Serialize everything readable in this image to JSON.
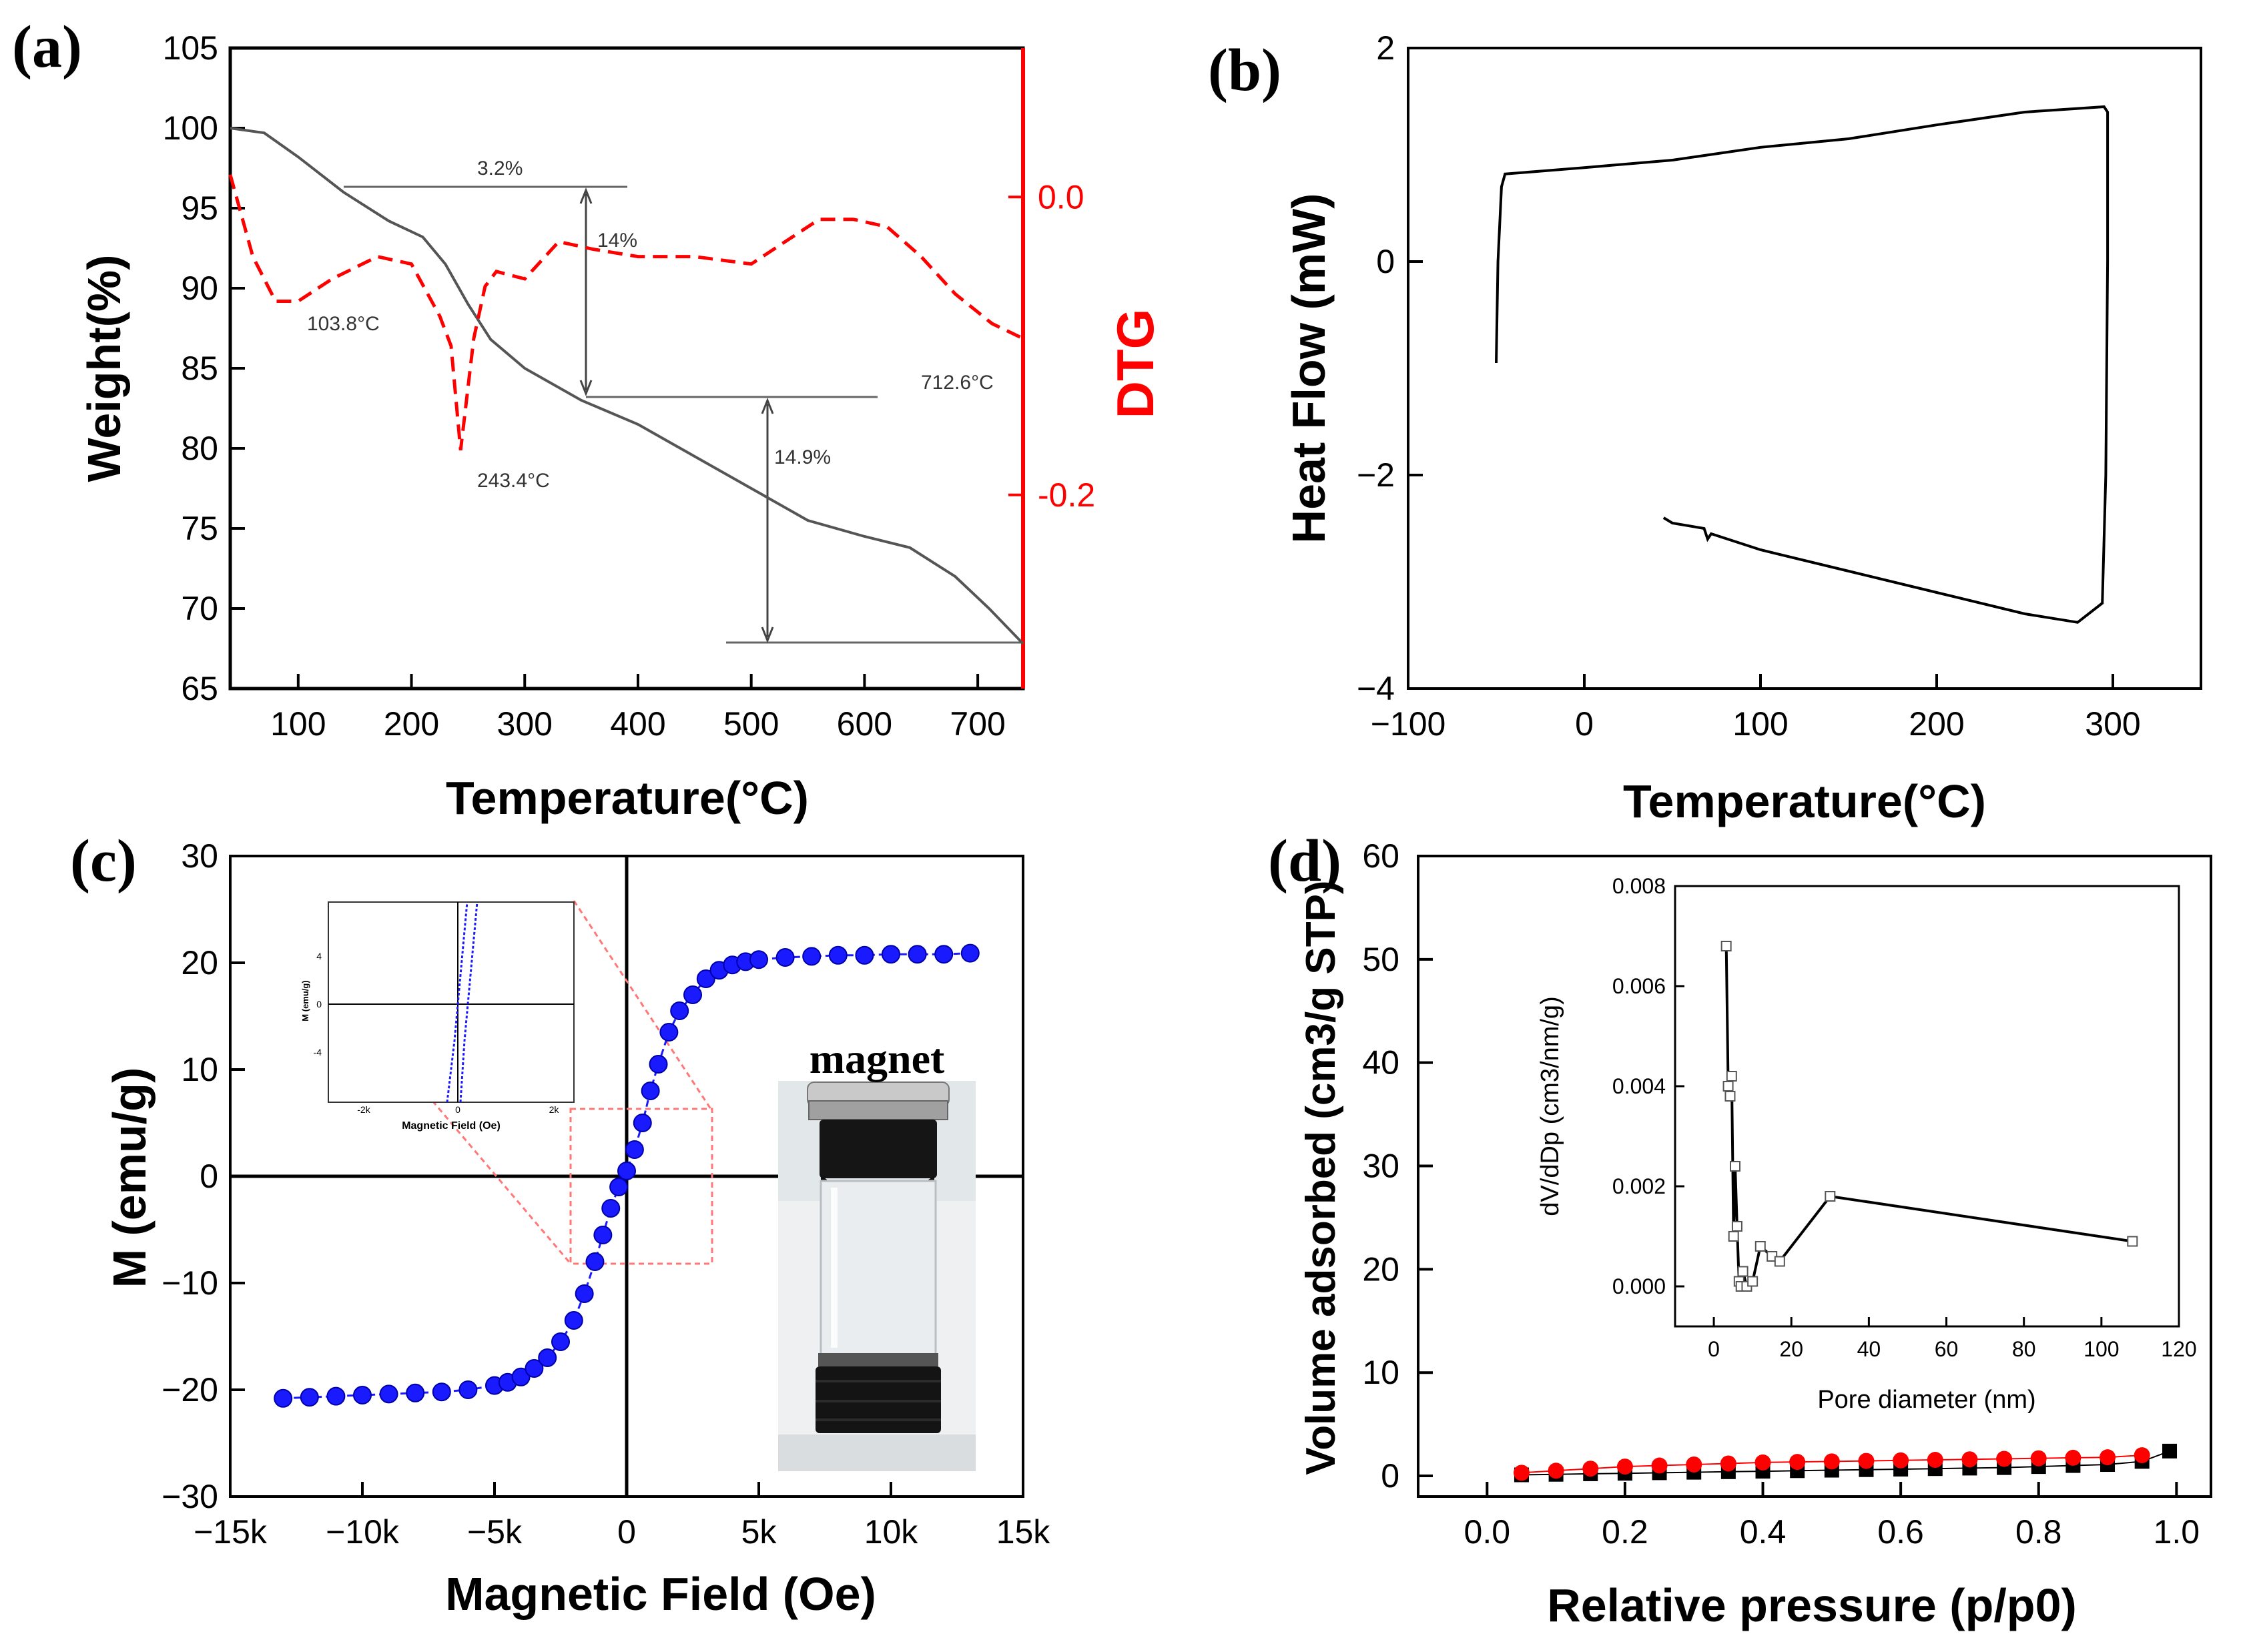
{
  "panels": {
    "a": {
      "label": "(a)"
    },
    "b": {
      "label": "(b)"
    },
    "c": {
      "label": "(c)"
    },
    "d": {
      "label": "(d)"
    }
  },
  "chart_data": [
    {
      "id": "a",
      "type": "line",
      "xlabel": "Temperature(°C)",
      "ylabel": "Weight(%)",
      "y2label": "DTG",
      "xlim": [
        40,
        740
      ],
      "ylim": [
        65,
        105
      ],
      "y2lim": [
        -0.33,
        0.1
      ],
      "xticks": [
        "100",
        "200",
        "300",
        "400",
        "500",
        "600",
        "700"
      ],
      "yticks": [
        "65",
        "70",
        "75",
        "80",
        "85",
        "90",
        "95",
        "100",
        "105"
      ],
      "y2ticks": [
        "0.0",
        "-0.2"
      ],
      "colors": {
        "weight": "#555555",
        "dtg": "#ff0000"
      },
      "series": [
        {
          "x": [
            40,
            70,
            100,
            140,
            180,
            210,
            230,
            250,
            270,
            300,
            350,
            400,
            450,
            500,
            550,
            600,
            640,
            680,
            710,
            740
          ],
          "y": [
            100,
            99.7,
            98.2,
            96,
            94.2,
            93.2,
            91.5,
            89,
            86.8,
            85,
            83,
            81.5,
            79.5,
            77.5,
            75.5,
            74.5,
            73.8,
            72,
            70,
            67.8
          ]
        },
        {
          "x": [
            40,
            60,
            80,
            100,
            130,
            170,
            200,
            225,
            235,
            243.4,
            255,
            265,
            275,
            300,
            330,
            360,
            400,
            450,
            500,
            530,
            560,
            590,
            620,
            650,
            680,
            712.6,
            740
          ],
          "y": [
            0.015,
            -0.04,
            -0.07,
            -0.07,
            -0.055,
            -0.04,
            -0.045,
            -0.08,
            -0.1,
            -0.17,
            -0.095,
            -0.06,
            -0.05,
            -0.055,
            -0.03,
            -0.035,
            -0.04,
            -0.04,
            -0.045,
            -0.03,
            -0.015,
            -0.015,
            -0.02,
            -0.04,
            -0.065,
            -0.085,
            -0.095
          ]
        }
      ],
      "annotations": [
        "3.2%",
        "14%",
        "14.9%",
        "103.8°C",
        "243.4°C",
        "712.6°C"
      ]
    },
    {
      "id": "b",
      "type": "line",
      "xlabel": "Temperature(°C)",
      "ylabel": "Heat Flow (mW)",
      "xlim": [
        -100,
        350
      ],
      "ylim": [
        -4,
        2
      ],
      "xticks": [
        "−100",
        "0",
        "100",
        "200",
        "300"
      ],
      "yticks": [
        "−4",
        "−2",
        "0",
        "2"
      ],
      "series": [
        {
          "x": [
            -50,
            -49,
            -47,
            -45,
            0,
            50,
            100,
            150,
            200,
            250,
            295,
            297,
            297,
            296,
            294,
            280,
            250,
            200,
            150,
            100,
            72,
            70,
            68,
            50,
            45
          ],
          "y": [
            -0.95,
            0,
            0.7,
            0.82,
            0.88,
            0.95,
            1.07,
            1.15,
            1.28,
            1.4,
            1.45,
            1.4,
            0,
            -2,
            -3.2,
            -3.38,
            -3.3,
            -3.1,
            -2.9,
            -2.7,
            -2.55,
            -2.6,
            -2.5,
            -2.45,
            -2.4
          ]
        }
      ]
    },
    {
      "id": "c",
      "type": "scatter",
      "xlabel": "Magnetic Field (Oe)",
      "ylabel": "M (emu/g)",
      "xlim": [
        -15000,
        15000
      ],
      "ylim": [
        -30,
        30
      ],
      "xticks": [
        "−15k",
        "−10k",
        "−5k",
        "0",
        "5k",
        "10k",
        "15k"
      ],
      "yticks": [
        "−30",
        "−20",
        "−10",
        "0",
        "10",
        "20",
        "30"
      ],
      "colors": {
        "points": "#1a1aff"
      },
      "series": [
        {
          "x": [
            -13000,
            -12000,
            -11000,
            -10000,
            -9000,
            -8000,
            -7000,
            -6000,
            -5000,
            -4500,
            -4000,
            -3500,
            -3000,
            -2500,
            -2000,
            -1600,
            -1200,
            -900,
            -600,
            -300,
            0,
            300,
            600,
            900,
            1200,
            1600,
            2000,
            2500,
            3000,
            3500,
            4000,
            4500,
            5000,
            6000,
            7000,
            8000,
            9000,
            10000,
            11000,
            12000,
            13000
          ],
          "y": [
            -20.8,
            -20.7,
            -20.6,
            -20.5,
            -20.4,
            -20.3,
            -20.2,
            -20,
            -19.6,
            -19.3,
            -18.8,
            -18,
            -17,
            -15.5,
            -13.5,
            -11,
            -8,
            -5.5,
            -3,
            -1,
            0.5,
            2.5,
            5,
            8,
            10.5,
            13.5,
            15.5,
            17,
            18.5,
            19.3,
            19.8,
            20.1,
            20.3,
            20.5,
            20.6,
            20.7,
            20.7,
            20.8,
            20.8,
            20.8,
            20.9
          ]
        }
      ],
      "inset": {
        "xlabel": "Magnetic Field (Oe)",
        "ylabel": "M (emu/g)",
        "xticks": [
          "-2k",
          "0",
          "2k"
        ],
        "yticks": [
          "4",
          "0",
          "-4"
        ]
      },
      "photo_label": "magnet"
    },
    {
      "id": "d",
      "type": "scatter",
      "xlabel": "Relative pressure (p/p0)",
      "ylabel": "Volume adsorbed (cm3/g STP)",
      "xlim": [
        -0.1,
        1.05
      ],
      "ylim": [
        -2,
        60
      ],
      "xticks": [
        "0.0",
        "0.2",
        "0.4",
        "0.6",
        "0.8",
        "1.0"
      ],
      "yticks": [
        "0",
        "10",
        "20",
        "30",
        "40",
        "50",
        "60"
      ],
      "colors": {
        "adsorption": "#000000",
        "desorption": "#ff0000"
      },
      "series": [
        {
          "x": [
            0.05,
            0.1,
            0.15,
            0.2,
            0.25,
            0.3,
            0.35,
            0.4,
            0.45,
            0.5,
            0.55,
            0.6,
            0.65,
            0.7,
            0.75,
            0.8,
            0.85,
            0.9,
            0.95,
            0.99
          ],
          "y": [
            0.1,
            0.15,
            0.2,
            0.25,
            0.3,
            0.35,
            0.4,
            0.45,
            0.5,
            0.55,
            0.6,
            0.65,
            0.7,
            0.75,
            0.8,
            0.9,
            1.0,
            1.1,
            1.4,
            2.4
          ]
        },
        {
          "x": [
            0.05,
            0.1,
            0.15,
            0.2,
            0.25,
            0.3,
            0.35,
            0.4,
            0.45,
            0.5,
            0.55,
            0.6,
            0.65,
            0.7,
            0.75,
            0.8,
            0.85,
            0.9,
            0.95
          ],
          "y": [
            0.3,
            0.5,
            0.7,
            0.9,
            1.0,
            1.1,
            1.2,
            1.3,
            1.35,
            1.4,
            1.45,
            1.5,
            1.55,
            1.6,
            1.65,
            1.7,
            1.75,
            1.8,
            2.0
          ]
        }
      ],
      "inset": {
        "type": "line",
        "xlabel": "Pore diameter (nm)",
        "ylabel": "dV/dDp (cm3/nm/g)",
        "xlim": [
          -10,
          120
        ],
        "ylim": [
          -0.0008,
          0.008
        ],
        "xticks": [
          "0",
          "20",
          "40",
          "60",
          "80",
          "100",
          "120"
        ],
        "yticks": [
          "0.000",
          "0.002",
          "0.004",
          "0.006",
          "0.008"
        ],
        "x": [
          3.2,
          3.7,
          4.2,
          4.6,
          5.1,
          5.5,
          6.0,
          6.5,
          7.0,
          7.5,
          8.5,
          10,
          12,
          15,
          17,
          30,
          108
        ],
        "y": [
          0.0068,
          0.004,
          0.0038,
          0.0042,
          0.001,
          0.0024,
          0.0012,
          0.0001,
          0.0,
          0.0003,
          0.0,
          0.0001,
          0.0008,
          0.0006,
          0.0005,
          0.0018,
          0.0009
        ]
      }
    }
  ]
}
